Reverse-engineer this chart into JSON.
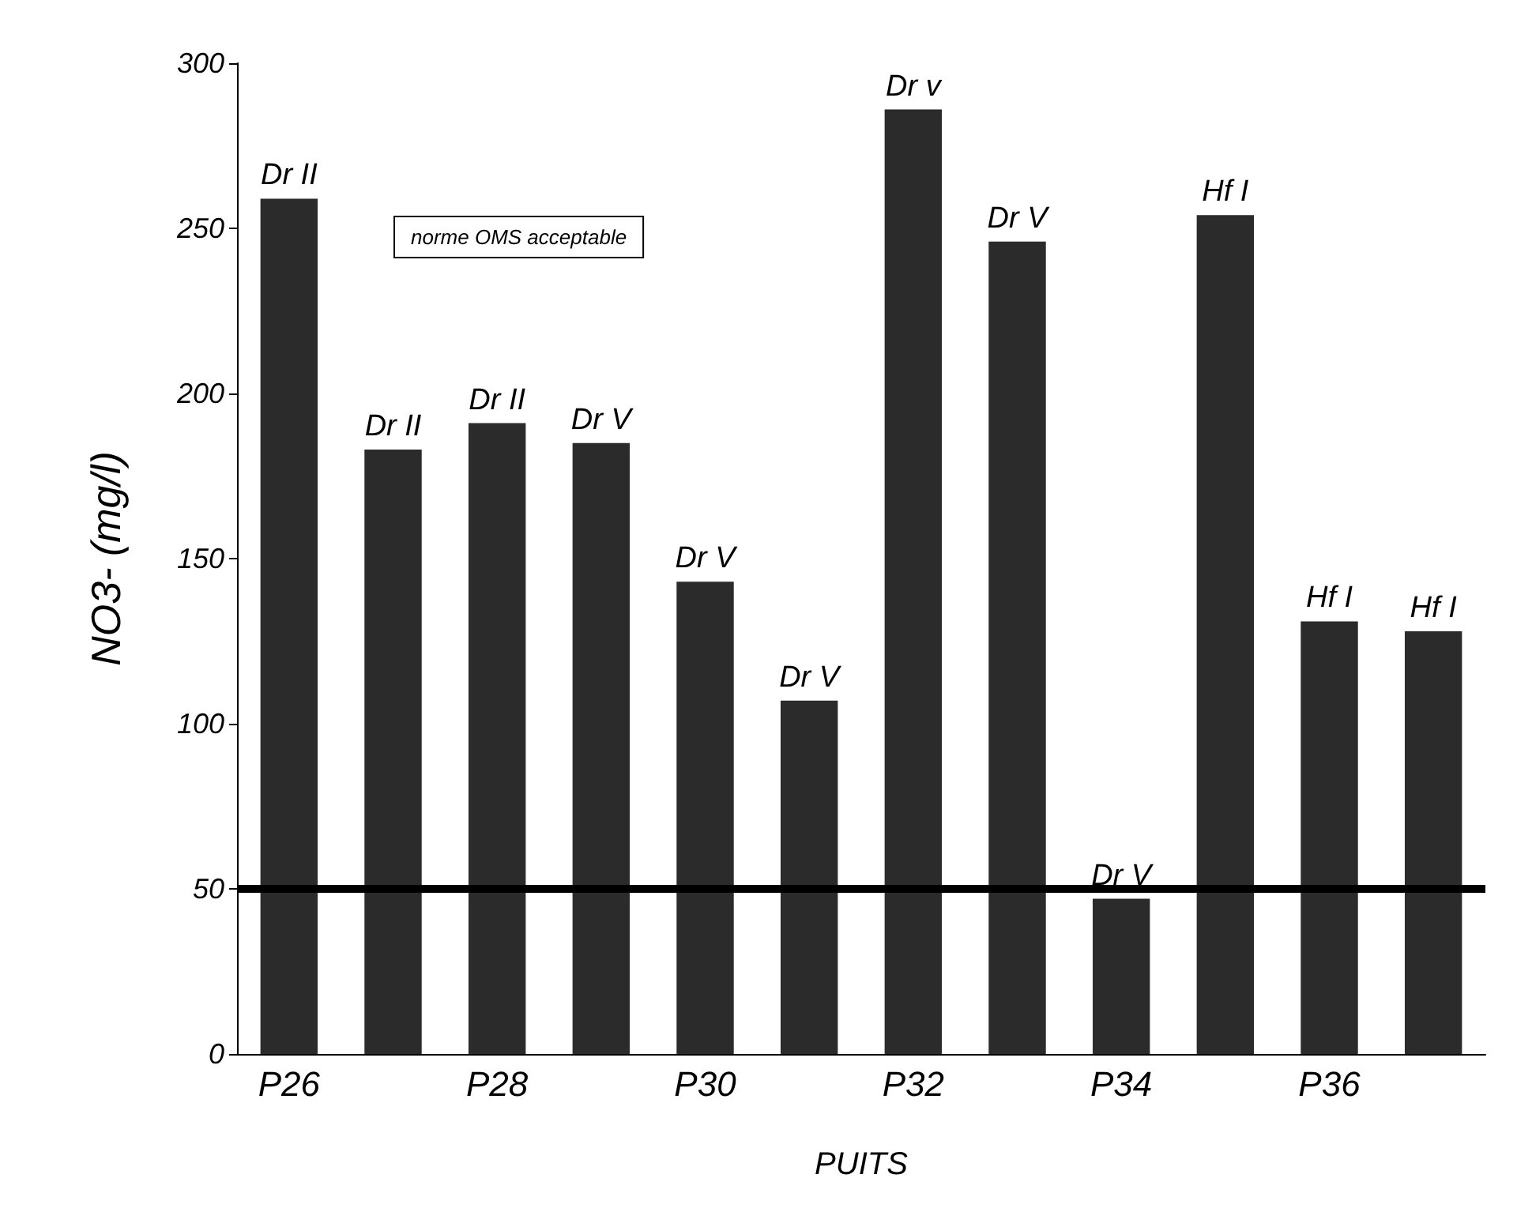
{
  "chart_data": {
    "type": "bar",
    "xlabel": "PUITS",
    "ylabel": "NO3- (mg/l)",
    "categories": [
      "P26",
      null,
      "P28",
      null,
      "P30",
      null,
      "P32",
      null,
      "P34",
      null,
      "P36",
      null
    ],
    "values": [
      259,
      183,
      191,
      185,
      143,
      107,
      286,
      246,
      47,
      254,
      131,
      128
    ],
    "value_labels": [
      "Dr II",
      "Dr II",
      "Dr II",
      "Dr V",
      "Dr V",
      "Dr V",
      "Dr v",
      "Dr V",
      "Dr V",
      "Hf I",
      "Hf I",
      "Hf I"
    ],
    "color": "#2b2b2b",
    "ylim": [
      0,
      300
    ],
    "yticks": [
      0,
      50,
      100,
      150,
      200,
      250,
      300
    ],
    "grid": false,
    "ref_lines": [
      {
        "axis": "y",
        "value": 50,
        "label": "norme OMS acceptable",
        "color": "#000000",
        "line_style": "solid"
      }
    ]
  }
}
